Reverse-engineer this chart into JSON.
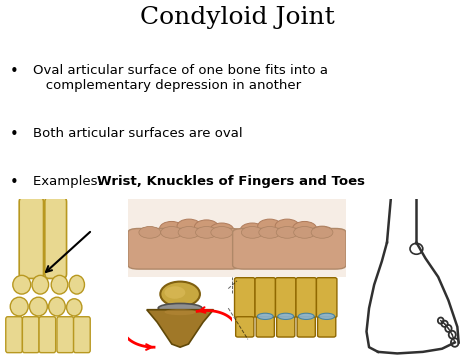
{
  "title": "Condyloid Joint",
  "title_fontsize": 18,
  "bg_color": "#ffffff",
  "text_color": "#000000",
  "bullet1": "Oval articular surface of one bone fits into a\n   complementary depression in another",
  "bullet2": "Both articular surfaces are oval",
  "bullet3_plain": "Examples:  ",
  "bullet3_bold": "Wrist, Knuckles of Fingers and Toes",
  "bullet_fontsize": 9.5,
  "bone_color": "#e8d890",
  "bone_edge": "#b89820",
  "bone_color2": "#d4b040",
  "bone_edge2": "#906800",
  "flesh_color": "#d4a882",
  "flesh_dark": "#c08060",
  "gray_light": "#c8c8c8",
  "gray_dark": "#707070",
  "foot_bg": "#f4f4f4",
  "fist_bg": "#dbb898"
}
